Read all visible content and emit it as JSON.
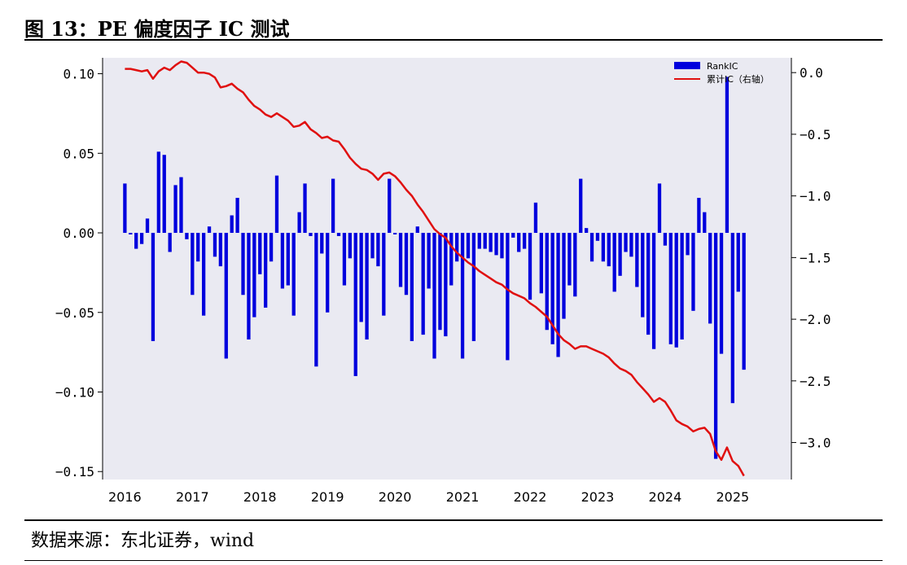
{
  "header": {
    "title": "图 13：PE 偏度因子 IC 测试"
  },
  "footer": {
    "source": "数据来源：东北证券，wind"
  },
  "chart_data": {
    "type": "bar+line",
    "title": "",
    "xlabel": "",
    "ylabel": "",
    "x_ticks": [
      "2016",
      "2017",
      "2018",
      "2019",
      "2020",
      "2021",
      "2022",
      "2023",
      "2024",
      "2025"
    ],
    "x_range": [
      2015.67,
      2025.87
    ],
    "ylim_left": [
      -0.155,
      0.11
    ],
    "yticks_left": [
      0.1,
      0.05,
      0.0,
      -0.05,
      -0.1,
      -0.15
    ],
    "ytick_labels_left": [
      "0.10",
      "0.05",
      "0.00",
      "−0.05",
      "−0.10",
      "−0.15"
    ],
    "ylim_right": [
      -3.3,
      0.12
    ],
    "yticks_right": [
      0.0,
      -0.5,
      -1.0,
      -1.5,
      -2.0,
      -2.5,
      -3.0
    ],
    "ytick_labels_right": [
      "0.0",
      "−0.5",
      "−1.0",
      "−1.5",
      "−2.0",
      "−2.5",
      "−3.0"
    ],
    "grid": false,
    "legend_position": "top-right",
    "colors": {
      "bar": "#0000dd",
      "line": "#e01010",
      "plot_bg": "#eaeaf2"
    },
    "x_start": "2016-01",
    "series": [
      {
        "name": "RankIC",
        "type": "bar",
        "axis": "left",
        "values": [
          0.031,
          -0.001,
          -0.01,
          -0.007,
          0.009,
          -0.068,
          0.051,
          0.049,
          -0.012,
          0.03,
          0.035,
          -0.004,
          -0.039,
          -0.018,
          -0.052,
          0.004,
          -0.015,
          -0.021,
          -0.079,
          0.011,
          0.022,
          -0.039,
          -0.067,
          -0.053,
          -0.026,
          -0.047,
          -0.018,
          0.036,
          -0.035,
          -0.033,
          -0.052,
          0.013,
          0.031,
          -0.002,
          -0.084,
          -0.013,
          -0.05,
          0.034,
          -0.002,
          -0.033,
          -0.016,
          -0.09,
          -0.056,
          -0.067,
          -0.016,
          -0.021,
          -0.052,
          0.034,
          -0.001,
          -0.034,
          -0.039,
          -0.068,
          0.004,
          -0.064,
          -0.035,
          -0.079,
          -0.061,
          -0.065,
          -0.033,
          -0.018,
          -0.079,
          -0.016,
          -0.068,
          -0.01,
          -0.01,
          -0.012,
          -0.014,
          -0.016,
          -0.08,
          -0.003,
          -0.012,
          -0.01,
          -0.042,
          0.019,
          -0.038,
          -0.061,
          -0.07,
          -0.078,
          -0.054,
          -0.033,
          -0.04,
          0.034,
          0.003,
          -0.018,
          -0.005,
          -0.018,
          -0.021,
          -0.037,
          -0.027,
          -0.012,
          -0.015,
          -0.034,
          -0.053,
          -0.064,
          -0.073,
          0.031,
          -0.008,
          -0.07,
          -0.072,
          -0.067,
          -0.014,
          -0.049,
          0.022,
          0.013,
          -0.057,
          -0.142,
          -0.076,
          0.098,
          -0.107,
          -0.037,
          -0.086
        ]
      },
      {
        "name": "累计IC（右轴）",
        "type": "line",
        "axis": "right",
        "values": [
          0.03,
          0.03,
          0.02,
          0.01,
          0.02,
          -0.05,
          0.01,
          0.04,
          0.02,
          0.06,
          0.09,
          0.08,
          0.04,
          0.0,
          0.0,
          -0.01,
          -0.04,
          -0.12,
          -0.11,
          -0.09,
          -0.13,
          -0.16,
          -0.22,
          -0.27,
          -0.3,
          -0.34,
          -0.36,
          -0.33,
          -0.36,
          -0.39,
          -0.44,
          -0.43,
          -0.4,
          -0.46,
          -0.49,
          -0.53,
          -0.52,
          -0.55,
          -0.56,
          -0.62,
          -0.69,
          -0.74,
          -0.78,
          -0.79,
          -0.82,
          -0.87,
          -0.82,
          -0.81,
          -0.84,
          -0.89,
          -0.95,
          -1.0,
          -1.07,
          -1.13,
          -1.2,
          -1.27,
          -1.31,
          -1.34,
          -1.41,
          -1.46,
          -1.5,
          -1.54,
          -1.57,
          -1.61,
          -1.64,
          -1.67,
          -1.7,
          -1.72,
          -1.76,
          -1.79,
          -1.81,
          -1.83,
          -1.87,
          -1.9,
          -1.94,
          -1.98,
          -2.05,
          -2.12,
          -2.17,
          -2.2,
          -2.24,
          -2.22,
          -2.22,
          -2.24,
          -2.26,
          -2.28,
          -2.31,
          -2.36,
          -2.4,
          -2.42,
          -2.45,
          -2.51,
          -2.56,
          -2.61,
          -2.67,
          -2.64,
          -2.67,
          -2.74,
          -2.82,
          -2.85,
          -2.87,
          -2.91,
          -2.89,
          -2.88,
          -2.93,
          -3.07,
          -3.14,
          -3.04,
          -3.15,
          -3.19,
          -3.27
        ]
      }
    ]
  }
}
